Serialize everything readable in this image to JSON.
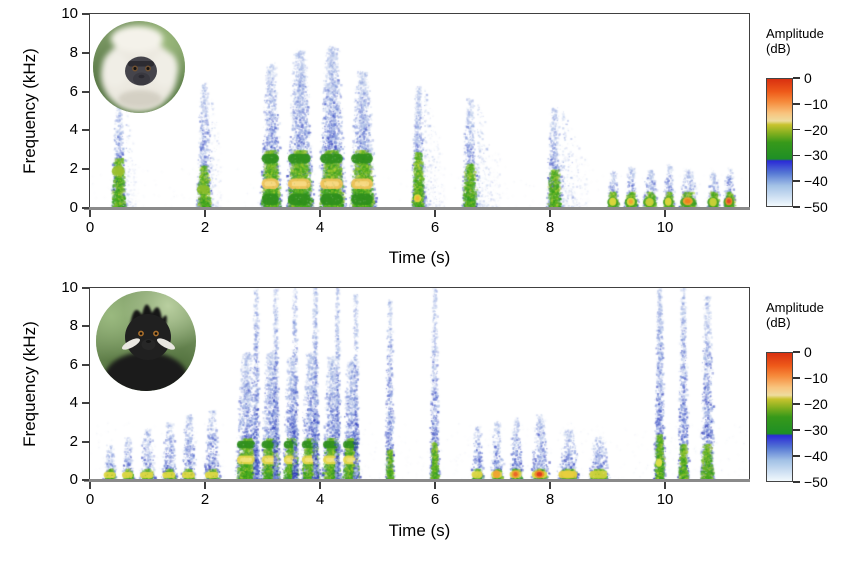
{
  "figure": {
    "background": "#ffffff",
    "panels": [
      {
        "name": "top-spectrogram",
        "species_photo": "gray-langur-photo"
      },
      {
        "name": "bottom-spectrogram",
        "species_photo": "francois-langur-photo"
      }
    ]
  },
  "chart_data": [
    {
      "type": "heatmap",
      "subtype": "spectrogram",
      "panel": "top",
      "title": "",
      "xlabel": "Time (s)",
      "ylabel": "Frequency (kHz)",
      "xlim": [
        0,
        11.46
      ],
      "ylim": [
        0,
        10
      ],
      "xticks": [
        0,
        2,
        4,
        6,
        8,
        10
      ],
      "yticks": [
        0,
        2,
        4,
        6,
        8,
        10
      ],
      "grid": false,
      "colorbar": {
        "label_lines": [
          "Amplitude",
          "(dB)"
        ],
        "ticks": [
          0,
          -10,
          -20,
          -30,
          -40,
          -50
        ],
        "tick_labels": [
          "0",
          "−10",
          "−20",
          "−30",
          "−40",
          "−50"
        ],
        "gradient_stops": [
          {
            "pos": 0.0,
            "color": "#d93010"
          },
          {
            "pos": 0.1,
            "color": "#ee5a1a"
          },
          {
            "pos": 0.18,
            "color": "#f68b3c"
          },
          {
            "pos": 0.27,
            "color": "#f8c47e"
          },
          {
            "pos": 0.33,
            "color": "#eedc9e"
          },
          {
            "pos": 0.36,
            "color": "#c8c32e"
          },
          {
            "pos": 0.43,
            "color": "#7fae1e"
          },
          {
            "pos": 0.5,
            "color": "#37991a"
          },
          {
            "pos": 0.63,
            "color": "#1e8f25"
          },
          {
            "pos": 0.645,
            "color": "#2a2ad6"
          },
          {
            "pos": 0.74,
            "color": "#5577d4"
          },
          {
            "pos": 0.84,
            "color": "#a3c2e6"
          },
          {
            "pos": 1.0,
            "color": "#f2f9fd"
          }
        ]
      },
      "background_speckle": {
        "count": 300,
        "fmax": 2.2
      },
      "calls": [
        {
          "t0": 0.36,
          "t1": 0.62,
          "ftop": 5.4,
          "fcore": 2.6,
          "den": 1.35,
          "tail": 0.18,
          "bars": [
            {
              "f": 1.9,
              "h": 0.5,
              "c": "#9cc02e"
            }
          ]
        },
        {
          "t0": 1.84,
          "t1": 2.1,
          "ftop": 6.4,
          "fcore": 2.2,
          "den": 1.3,
          "tail": 0.18,
          "bars": [
            {
              "f": 0.95,
              "h": 0.45,
              "c": "#8abd2a"
            }
          ]
        },
        {
          "t0": 2.96,
          "t1": 3.31,
          "ftop": 7.4,
          "fcore": 3.0,
          "den": 1.7,
          "bars": [
            {
              "f": 2.55,
              "h": 0.5,
              "c": "#2f8f1d"
            },
            {
              "f": 1.25,
              "h": 0.55,
              "c": "#f3c45c",
              "c2": "#f8dc86"
            },
            {
              "f": 0.45,
              "h": 0.6,
              "c": "#2f8f1d"
            }
          ]
        },
        {
          "t0": 3.41,
          "t1": 3.87,
          "ftop": 8.1,
          "fcore": 3.0,
          "den": 1.7,
          "bars": [
            {
              "f": 2.55,
              "h": 0.5,
              "c": "#2f8f1d"
            },
            {
              "f": 1.25,
              "h": 0.55,
              "c": "#f3c45c",
              "c2": "#f8dc86"
            },
            {
              "f": 0.45,
              "h": 0.6,
              "c": "#2f8f1d"
            }
          ]
        },
        {
          "t0": 3.97,
          "t1": 4.43,
          "ftop": 8.3,
          "fcore": 3.0,
          "den": 1.7,
          "bars": [
            {
              "f": 2.55,
              "h": 0.5,
              "c": "#2f8f1d"
            },
            {
              "f": 1.25,
              "h": 0.55,
              "c": "#f3c45c",
              "c2": "#f8dc86"
            },
            {
              "f": 0.45,
              "h": 0.6,
              "c": "#2f8f1d"
            }
          ]
        },
        {
          "t0": 4.51,
          "t1": 4.95,
          "ftop": 7.0,
          "fcore": 3.0,
          "den": 1.7,
          "bars": [
            {
              "f": 2.55,
              "h": 0.5,
              "c": "#2f8f1d"
            },
            {
              "f": 1.25,
              "h": 0.55,
              "c": "#f3c45c",
              "c2": "#f8dc86"
            },
            {
              "f": 0.45,
              "h": 0.6,
              "c": "#2f8f1d"
            }
          ]
        },
        {
          "t0": 5.58,
          "t1": 5.81,
          "ftop": 6.2,
          "fcore": 2.9,
          "den": 1.45,
          "tail": 0.35,
          "dots": [
            {
              "f": 0.5,
              "c": "#e6d83e",
              "c2": "#f0b43c"
            }
          ]
        },
        {
          "t0": 6.46,
          "t1": 6.73,
          "ftop": 5.6,
          "fcore": 2.3,
          "den": 1.35,
          "tail": 0.4
        },
        {
          "t0": 7.93,
          "t1": 8.2,
          "ftop": 5.2,
          "fcore": 2.0,
          "den": 1.3,
          "tail": 0.45
        },
        {
          "t0": 8.98,
          "t1": 9.2,
          "ftop": 1.9,
          "fcore": 0.85,
          "den": 1.4,
          "bars": [
            {
              "f": 0.3,
              "h": 0.45,
              "c": "#46a322"
            }
          ],
          "dots": [
            {
              "f": 0.32,
              "c": "#e2d83e"
            }
          ]
        },
        {
          "t0": 9.28,
          "t1": 9.53,
          "ftop": 2.1,
          "fcore": 0.85,
          "den": 1.4,
          "bars": [
            {
              "f": 0.3,
              "h": 0.45,
              "c": "#46a322"
            }
          ],
          "dots": [
            {
              "f": 0.32,
              "c": "#e2d83e",
              "c2": "#f0a232"
            }
          ]
        },
        {
          "t0": 9.6,
          "t1": 9.86,
          "ftop": 2.0,
          "fcore": 0.85,
          "den": 1.4,
          "bars": [
            {
              "f": 0.3,
              "h": 0.45,
              "c": "#46a322"
            }
          ],
          "dots": [
            {
              "f": 0.3,
              "c": "#cfd23a"
            }
          ]
        },
        {
          "t0": 9.95,
          "t1": 10.16,
          "ftop": 2.2,
          "fcore": 0.85,
          "den": 1.4,
          "bars": [
            {
              "f": 0.3,
              "h": 0.45,
              "c": "#46a322"
            }
          ],
          "dots": [
            {
              "f": 0.32,
              "c": "#e2d83e"
            }
          ]
        },
        {
          "t0": 10.24,
          "t1": 10.55,
          "ftop": 2.0,
          "fcore": 0.85,
          "den": 1.4,
          "bars": [
            {
              "f": 0.3,
              "h": 0.45,
              "c": "#46a322"
            }
          ],
          "dots": [
            {
              "f": 0.35,
              "c": "#f0a232",
              "c2": "#ef7f1e"
            }
          ]
        },
        {
          "t0": 10.72,
          "t1": 10.95,
          "ftop": 1.9,
          "fcore": 0.85,
          "den": 1.4,
          "bars": [
            {
              "f": 0.3,
              "h": 0.45,
              "c": "#46a322"
            }
          ],
          "dots": [
            {
              "f": 0.3,
              "c": "#cfd23a"
            }
          ]
        },
        {
          "t0": 11.0,
          "t1": 11.22,
          "ftop": 2.0,
          "fcore": 0.85,
          "den": 1.4,
          "bars": [
            {
              "f": 0.3,
              "h": 0.45,
              "c": "#46a322"
            }
          ],
          "dots": [
            {
              "f": 0.35,
              "c": "#ef8a28",
              "c2": "#e2472a"
            }
          ]
        }
      ]
    },
    {
      "type": "heatmap",
      "subtype": "spectrogram",
      "panel": "bottom",
      "title": "",
      "xlabel": "Time (s)",
      "ylabel": "Frequency (kHz)",
      "xlim": [
        0,
        11.46
      ],
      "ylim": [
        0,
        10
      ],
      "xticks": [
        0,
        2,
        4,
        6,
        8,
        10
      ],
      "yticks": [
        0,
        2,
        4,
        6,
        8,
        10
      ],
      "grid": false,
      "colorbar": {
        "label_lines": [
          "Amplitude",
          "(dB)"
        ],
        "ticks": [
          0,
          -10,
          -20,
          -30,
          -40,
          -50
        ],
        "tick_labels": [
          "0",
          "−10",
          "−20",
          "−30",
          "−40",
          "−50"
        ],
        "gradient_stops": [
          {
            "pos": 0.0,
            "color": "#d93010"
          },
          {
            "pos": 0.1,
            "color": "#ee5a1a"
          },
          {
            "pos": 0.18,
            "color": "#f68b3c"
          },
          {
            "pos": 0.27,
            "color": "#f8c47e"
          },
          {
            "pos": 0.33,
            "color": "#eedc9e"
          },
          {
            "pos": 0.36,
            "color": "#c8c32e"
          },
          {
            "pos": 0.43,
            "color": "#7fae1e"
          },
          {
            "pos": 0.5,
            "color": "#37991a"
          },
          {
            "pos": 0.63,
            "color": "#1e8f25"
          },
          {
            "pos": 0.645,
            "color": "#2a2ad6"
          },
          {
            "pos": 0.74,
            "color": "#5577d4"
          },
          {
            "pos": 0.84,
            "color": "#a3c2e6"
          },
          {
            "pos": 1.0,
            "color": "#f2f9fd"
          }
        ]
      },
      "background_speckle": {
        "count": 700,
        "fmax": 3.0
      },
      "calls": [
        {
          "t0": 0.22,
          "t1": 0.46,
          "ftop": 1.8,
          "fcore": 0.6,
          "den": 1.3,
          "bars": [
            {
              "f": 0.26,
              "h": 0.32,
              "c": "#dfd844"
            }
          ]
        },
        {
          "t0": 0.54,
          "t1": 0.76,
          "ftop": 2.2,
          "fcore": 0.6,
          "den": 1.3,
          "bars": [
            {
              "f": 0.26,
              "h": 0.32,
              "c": "#dfd844"
            }
          ]
        },
        {
          "t0": 0.85,
          "t1": 1.12,
          "ftop": 2.6,
          "fcore": 0.6,
          "den": 1.3,
          "bars": [
            {
              "f": 0.26,
              "h": 0.32,
              "c": "#dfd844"
            }
          ]
        },
        {
          "t0": 1.24,
          "t1": 1.5,
          "ftop": 3.0,
          "fcore": 0.6,
          "den": 1.3,
          "bars": [
            {
              "f": 0.26,
              "h": 0.32,
              "c": "#dfd844"
            }
          ]
        },
        {
          "t0": 1.58,
          "t1": 1.84,
          "ftop": 3.4,
          "fcore": 0.6,
          "den": 1.3,
          "bars": [
            {
              "f": 0.26,
              "h": 0.32,
              "c": "#dfd844"
            }
          ]
        },
        {
          "t0": 1.98,
          "t1": 2.25,
          "ftop": 3.6,
          "fcore": 0.6,
          "den": 1.3,
          "bars": [
            {
              "f": 0.26,
              "h": 0.32,
              "c": "#dfd844"
            }
          ]
        },
        {
          "t0": 2.53,
          "t1": 2.9,
          "ftop": 6.6,
          "fcore": 2.2,
          "den": 1.6,
          "bars": [
            {
              "f": 1.85,
              "h": 0.4,
              "c": "#2f8f1d"
            },
            {
              "f": 1.05,
              "h": 0.45,
              "c": "#e8d84c",
              "c2": "#f2e27c"
            }
          ]
        },
        {
          "t0": 2.96,
          "t1": 3.3,
          "ftop": 6.6,
          "fcore": 2.2,
          "den": 1.6,
          "bars": [
            {
              "f": 1.85,
              "h": 0.4,
              "c": "#2f8f1d"
            },
            {
              "f": 1.05,
              "h": 0.45,
              "c": "#e8d84c",
              "c2": "#f2e27c"
            }
          ]
        },
        {
          "t0": 3.35,
          "t1": 3.62,
          "ftop": 6.4,
          "fcore": 2.2,
          "den": 1.6,
          "bars": [
            {
              "f": 1.85,
              "h": 0.4,
              "c": "#2f8f1d"
            },
            {
              "f": 1.05,
              "h": 0.45,
              "c": "#e8d84c",
              "c2": "#f2e27c"
            }
          ]
        },
        {
          "t0": 3.66,
          "t1": 3.99,
          "ftop": 6.6,
          "fcore": 2.2,
          "den": 1.6,
          "bars": [
            {
              "f": 1.85,
              "h": 0.4,
              "c": "#2f8f1d"
            },
            {
              "f": 1.05,
              "h": 0.45,
              "c": "#e8d84c",
              "c2": "#f2e27c"
            }
          ]
        },
        {
          "t0": 4.03,
          "t1": 4.35,
          "ftop": 6.4,
          "fcore": 2.2,
          "den": 1.6,
          "bars": [
            {
              "f": 1.85,
              "h": 0.4,
              "c": "#2f8f1d"
            },
            {
              "f": 1.05,
              "h": 0.45,
              "c": "#e8d84c",
              "c2": "#f2e27c"
            }
          ]
        },
        {
          "t0": 4.38,
          "t1": 4.68,
          "ftop": 6.2,
          "fcore": 2.2,
          "den": 1.6,
          "bars": [
            {
              "f": 1.85,
              "h": 0.4,
              "c": "#2f8f1d"
            },
            {
              "f": 1.05,
              "h": 0.45,
              "c": "#e8d84c",
              "c2": "#f2e27c"
            }
          ]
        },
        {
          "t0": 2.82,
          "t1": 2.93,
          "ftop": 10.0,
          "fcore": 0,
          "den": 2.0
        },
        {
          "t0": 3.16,
          "t1": 3.27,
          "ftop": 10.0,
          "fcore": 0,
          "den": 2.0
        },
        {
          "t0": 3.5,
          "t1": 3.6,
          "ftop": 10.0,
          "fcore": 0,
          "den": 1.9
        },
        {
          "t0": 3.85,
          "t1": 3.96,
          "ftop": 10.0,
          "fcore": 0,
          "den": 2.0
        },
        {
          "t0": 4.24,
          "t1": 4.34,
          "ftop": 10.0,
          "fcore": 0,
          "den": 1.9
        },
        {
          "t0": 4.56,
          "t1": 4.66,
          "ftop": 9.6,
          "fcore": 0,
          "den": 1.8
        },
        {
          "t0": 5.12,
          "t1": 5.28,
          "ftop": 9.4,
          "fcore": 1.6,
          "den": 1.4
        },
        {
          "t0": 5.9,
          "t1": 6.06,
          "ftop": 10.0,
          "fcore": 2.0,
          "den": 1.5
        },
        {
          "t0": 6.62,
          "t1": 6.84,
          "ftop": 2.8,
          "fcore": 0.6,
          "den": 1.35,
          "bars": [
            {
              "f": 0.28,
              "h": 0.35,
              "c": "#dfd844"
            }
          ]
        },
        {
          "t0": 6.96,
          "t1": 7.18,
          "ftop": 3.0,
          "fcore": 0.6,
          "den": 1.35,
          "bars": [
            {
              "f": 0.28,
              "h": 0.35,
              "c": "#dfd844"
            }
          ],
          "dots": [
            {
              "f": 0.3,
              "c": "#f0a232"
            }
          ]
        },
        {
          "t0": 7.28,
          "t1": 7.52,
          "ftop": 3.2,
          "fcore": 0.6,
          "den": 1.35,
          "bars": [
            {
              "f": 0.28,
              "h": 0.35,
              "c": "#dfd844"
            }
          ],
          "dots": [
            {
              "f": 0.3,
              "c": "#f0a232",
              "c2": "#e8622a"
            }
          ]
        },
        {
          "t0": 7.66,
          "t1": 7.97,
          "ftop": 3.4,
          "fcore": 0.6,
          "den": 1.35,
          "bars": [
            {
              "f": 0.28,
              "h": 0.35,
              "c": "#dfd844"
            }
          ],
          "dots": [
            {
              "f": 0.3,
              "c": "#ef8a28",
              "c2": "#dd3a22"
            }
          ]
        },
        {
          "t0": 8.12,
          "t1": 8.5,
          "ftop": 2.6,
          "fcore": 0.6,
          "den": 1.35,
          "bars": [
            {
              "f": 0.28,
              "h": 0.38,
              "c": "#e8cf3e"
            }
          ],
          "dots": [
            {
              "f": 0.3,
              "c": "#e8cf3e"
            }
          ]
        },
        {
          "t0": 8.66,
          "t1": 9.02,
          "ftop": 2.2,
          "fcore": 0.6,
          "den": 1.35,
          "bars": [
            {
              "f": 0.28,
              "h": 0.4,
              "c": "#cfd23a"
            }
          ]
        },
        {
          "t0": 9.8,
          "t1": 9.99,
          "ftop": 10.0,
          "fcore": 2.4,
          "den": 1.8,
          "dots": [
            {
              "f": 0.9,
              "c": "#dfe04a"
            }
          ]
        },
        {
          "t0": 10.21,
          "t1": 10.4,
          "ftop": 10.0,
          "fcore": 1.9,
          "den": 1.5
        },
        {
          "t0": 10.6,
          "t1": 10.84,
          "ftop": 9.6,
          "fcore": 1.9,
          "den": 1.35
        }
      ]
    }
  ]
}
